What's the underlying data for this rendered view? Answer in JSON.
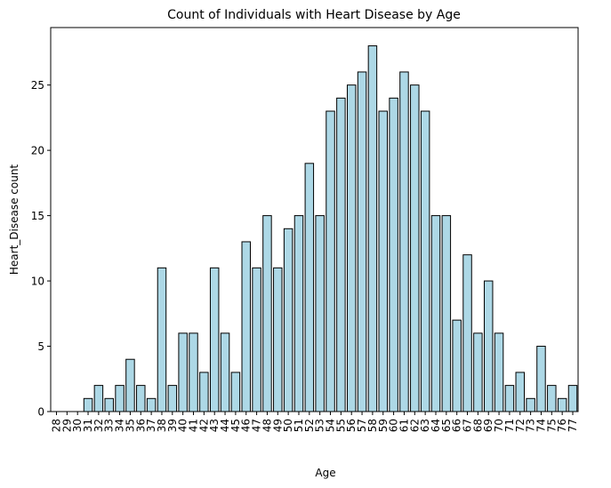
{
  "chart_data": {
    "type": "bar",
    "title": "Count of Individuals with Heart Disease by Age",
    "xlabel": "Age",
    "ylabel": "Heart_Disease count",
    "categories": [
      "28",
      "29",
      "30",
      "31",
      "32",
      "33",
      "34",
      "35",
      "36",
      "37",
      "38",
      "39",
      "40",
      "41",
      "42",
      "43",
      "44",
      "45",
      "46",
      "47",
      "48",
      "49",
      "50",
      "51",
      "52",
      "53",
      "54",
      "55",
      "56",
      "57",
      "58",
      "59",
      "60",
      "61",
      "62",
      "63",
      "64",
      "65",
      "66",
      "67",
      "68",
      "69",
      "70",
      "71",
      "72",
      "73",
      "74",
      "75",
      "76",
      "77"
    ],
    "values": [
      0,
      0,
      0,
      1,
      2,
      1,
      2,
      4,
      2,
      1,
      11,
      2,
      6,
      6,
      3,
      11,
      6,
      3,
      13,
      11,
      15,
      11,
      14,
      15,
      19,
      15,
      23,
      24,
      25,
      26,
      28,
      23,
      24,
      26,
      25,
      23,
      15,
      15,
      7,
      12,
      6,
      10,
      6,
      2,
      3,
      1,
      5,
      2,
      1,
      2
    ],
    "ylim": [
      0,
      29.4
    ],
    "yticks": [
      0,
      5,
      10,
      15,
      20,
      25
    ],
    "grid": false,
    "bar_color": "#add8e6",
    "edge_color": "#000000"
  }
}
